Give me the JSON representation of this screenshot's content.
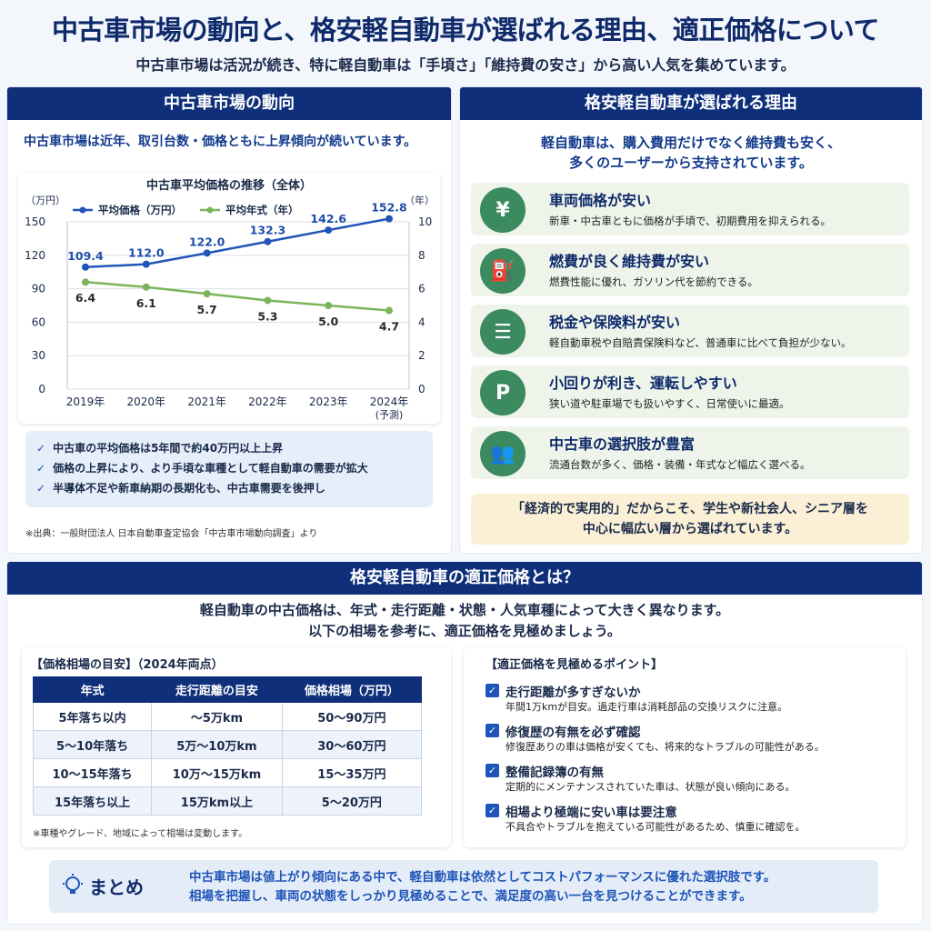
{
  "header": {
    "title": "中古車市場の動向と、格安軽自動車が選ばれる理由、適正価格について",
    "subtitle": "中古車市場は活況が続き、特に軽自動車は「手頃さ」「維持費の安さ」から高い人気を集めています。"
  },
  "market": {
    "heading": "中古車市場の動向",
    "lead": "中古車市場は近年、取引台数・価格ともに上昇傾向が続いています。",
    "bullets": [
      "中古車の平均価格は5年間で約40万円以上上昇",
      "価格の上昇により、より手頃な車種として軽自動車の需要が拡大",
      "半導体不足や新車納期の長期化も、中古車需要を後押し"
    ],
    "check_icon": "check-icon",
    "source": "※出典：一般財団法人 日本自動車査定協会「中古車市場動向調査」より"
  },
  "chart_data": {
    "type": "line",
    "title": "中古車平均価格の推移（全体）",
    "categories": [
      "2019年",
      "2020年",
      "2021年",
      "2022年",
      "2023年",
      "2024年"
    ],
    "category_note": "(予測)",
    "series": [
      {
        "name": "平均価格（万円）",
        "axis": "left",
        "color": "#1f55b8",
        "values": [
          109.4,
          112.0,
          122.0,
          132.3,
          142.6,
          152.8
        ],
        "labels": [
          "109.4",
          "112.0",
          "122.0",
          "132.3",
          "142.6",
          "152.8"
        ]
      },
      {
        "name": "平均年式（年）",
        "axis": "right",
        "color": "#7ab55c",
        "values": [
          6.4,
          6.1,
          5.7,
          5.3,
          5.0,
          4.7
        ],
        "labels": [
          "6.4",
          "6.1",
          "5.7",
          "5.3",
          "5.0",
          "4.7"
        ]
      }
    ],
    "y_left": {
      "unit": "（万円）",
      "ylim": [
        0,
        150
      ],
      "ticks": [
        "0",
        "30",
        "60",
        "90",
        "120",
        "150"
      ]
    },
    "y_right": {
      "unit": "（年）",
      "ylim": [
        0,
        10
      ],
      "ticks": [
        "0",
        "2",
        "4",
        "6",
        "8",
        "10"
      ]
    },
    "grid": true,
    "legend": "top-left"
  },
  "reasons": {
    "heading": "格安軽自動車が選ばれる理由",
    "lead_line1": "軽自動車は、購入費用だけでなく維持費も安く、",
    "lead_line2": "多くのユーザーから支持されています。",
    "items": [
      {
        "icon": "yen-icon",
        "glyph": "¥",
        "title": "車両価格が安い",
        "desc": "新車・中古車ともに価格が手頃で、初期費用を抑えられる。"
      },
      {
        "icon": "fuel-pump-icon",
        "glyph": "⛽",
        "title": "燃費が良く維持費が安い",
        "desc": "燃費性能に優れ、ガソリン代を節約できる。"
      },
      {
        "icon": "document-icon",
        "glyph": "☰",
        "title": "税金や保険料が安い",
        "desc": "軽自動車税や自賠責保険料など、普通車に比べて負担が少ない。"
      },
      {
        "icon": "parking-icon",
        "glyph": "P",
        "title": "小回りが利き、運転しやすい",
        "desc": "狭い道や駐車場でも扱いやすく、日常使いに最適。"
      },
      {
        "icon": "people-icon",
        "glyph": "👥",
        "title": "中古車の選択肢が豊富",
        "desc": "流通台数が多く、価格・装備・年式など幅広く選べる。"
      }
    ],
    "note_line1": "「経済的で実用的」だからこそ、学生や新社会人、シニア層を",
    "note_line2": "中心に幅広い層から選ばれています。"
  },
  "pricing": {
    "heading": "格安軽自動車の適正価格とは？",
    "lead_line1": "軽自動車の中古価格は、年式・走行距離・状態・人気車種によって大きく異なります。",
    "lead_line2": "以下の相場を参考に、適正価格を見極めましょう。",
    "table_title": "【価格相場の目安】（2024年両点）",
    "columns": [
      "年式",
      "走行距離の目安",
      "価格相場（万円）"
    ],
    "rows": [
      [
        "5年落ち以内",
        "〜5万km",
        "50〜90万円"
      ],
      [
        "5〜10年落ち",
        "5万〜10万km",
        "30〜60万円"
      ],
      [
        "10〜15年落ち",
        "10万〜15万km",
        "15〜35万円"
      ],
      [
        "15年落ち以上",
        "15万km以上",
        "5〜20万円"
      ]
    ],
    "table_note": "※車種やグレード、地域によって相場は変動します。",
    "points_title": "【適正価格を見極めるポイント】",
    "points": [
      {
        "title": "走行距離が多すぎないか",
        "desc": "年間1万kmが目安。過走行車は消耗部品の交換リスクに注意。"
      },
      {
        "title": "修復歴の有無を必ず確認",
        "desc": "修復歴ありの車は価格が安くても、将来的なトラブルの可能性がある。"
      },
      {
        "title": "整備記録簿の有無",
        "desc": "定期的にメンテナンスされていた車は、状態が良い傾向にある。"
      },
      {
        "title": "相場より極端に安い車は要注意",
        "desc": "不具合やトラブルを抱えている可能性があるため、慎重に確認を。"
      }
    ],
    "checkbox_icon": "checkbox-icon"
  },
  "summary": {
    "icon": "lightbulb-icon",
    "label": "まとめ",
    "line1": "中古車市場は値上がり傾向にある中で、軽自動車は依然としてコストパフォーマンスに優れた選択肢です。",
    "line2": "相場を把握し、車両の状態をしっかり見極めることで、満足度の高い一台を見つけることができます。"
  }
}
